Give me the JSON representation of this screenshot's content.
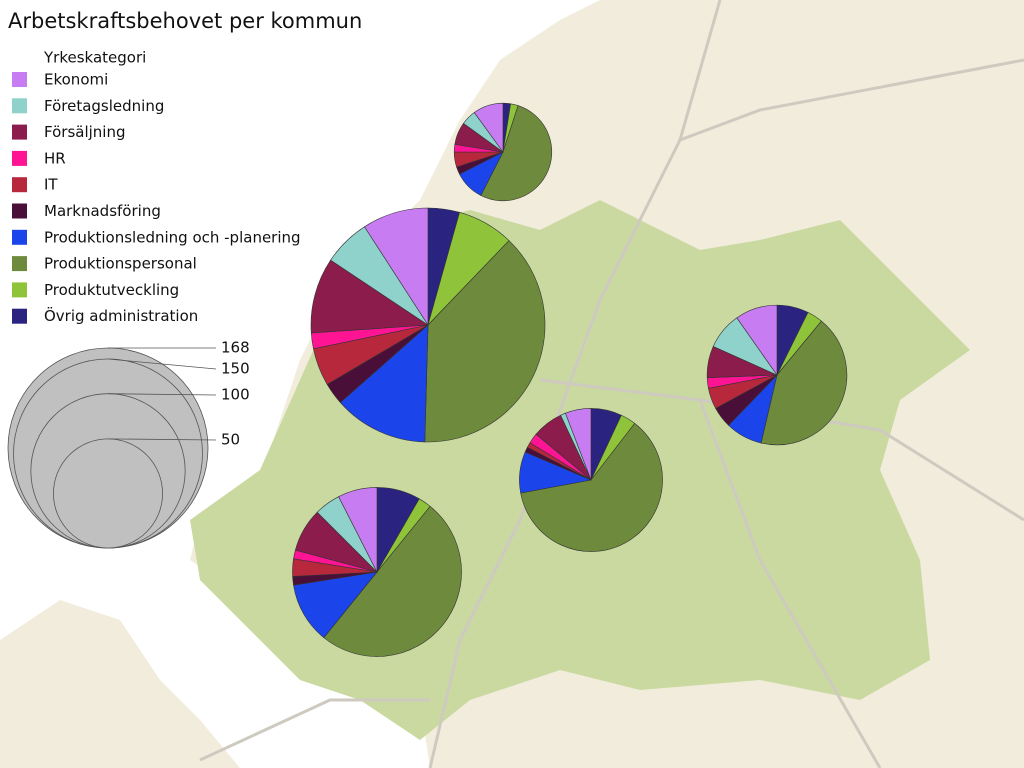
{
  "title": "Arbetskraftsbehovet per kommun",
  "legend": {
    "title": "Yrkeskategori",
    "items": [
      {
        "name": "Ekonomi",
        "color": "#c77cf2"
      },
      {
        "name": "Företagsledning",
        "color": "#8fd1cb"
      },
      {
        "name": "Försäljning",
        "color": "#8c1c4c"
      },
      {
        "name": "HR",
        "color": "#ff1493"
      },
      {
        "name": "IT",
        "color": "#b8283c"
      },
      {
        "name": "Marknadsföring",
        "color": "#4a0f38"
      },
      {
        "name": "Produktionsledning och -planering",
        "color": "#1b45ea"
      },
      {
        "name": "Produktionspersonal",
        "color": "#6e8a3c"
      },
      {
        "name": "Produktutveckling",
        "color": "#8fc43a"
      },
      {
        "name": "Övrig administration",
        "color": "#2a2380"
      }
    ]
  },
  "size_legend": [
    168,
    150,
    100,
    50
  ],
  "pies": [
    {
      "values": [
        4,
        2,
        3,
        1,
        2,
        1,
        4,
        21,
        1,
        1
      ]
    },
    {
      "values": [
        21,
        15,
        24,
        5,
        12,
        7,
        30,
        88,
        18,
        10
      ]
    },
    {
      "values": [
        8,
        7,
        6,
        2,
        4,
        4,
        7,
        35,
        3,
        6
      ]
    },
    {
      "values": [
        5,
        1,
        6,
        2,
        1,
        1,
        8,
        53,
        3,
        6
      ]
    },
    {
      "values": [
        9,
        6,
        10,
        2,
        4,
        2,
        14,
        60,
        3,
        10
      ]
    }
  ]
}
